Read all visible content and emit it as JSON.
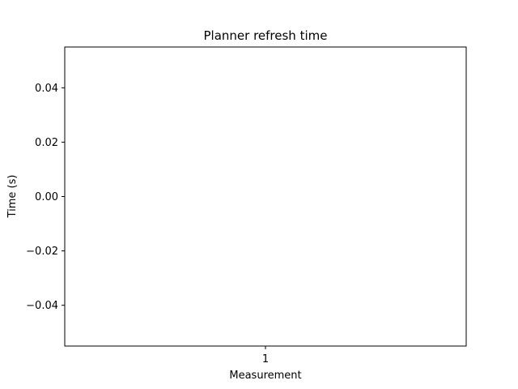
{
  "chart_data": {
    "type": "bar",
    "title": "Planner refresh time",
    "xlabel": "Measurement",
    "ylabel": "Time (s)",
    "categories": [
      "1"
    ],
    "series": [
      {
        "values": [
          0
        ]
      }
    ],
    "xlim": [
      0.5,
      1.5
    ],
    "ylim": [
      -0.055,
      0.055
    ],
    "yticks": [
      -0.04,
      -0.02,
      0.0,
      0.02,
      0.04
    ],
    "ytick_labels": [
      "−0.04",
      "−0.02",
      "0.00",
      "0.02",
      "0.04"
    ],
    "grid": false,
    "legend": "none",
    "colors": {
      "axis": "#000000",
      "background": "#ffffff",
      "bar": "#1f77b4"
    }
  }
}
